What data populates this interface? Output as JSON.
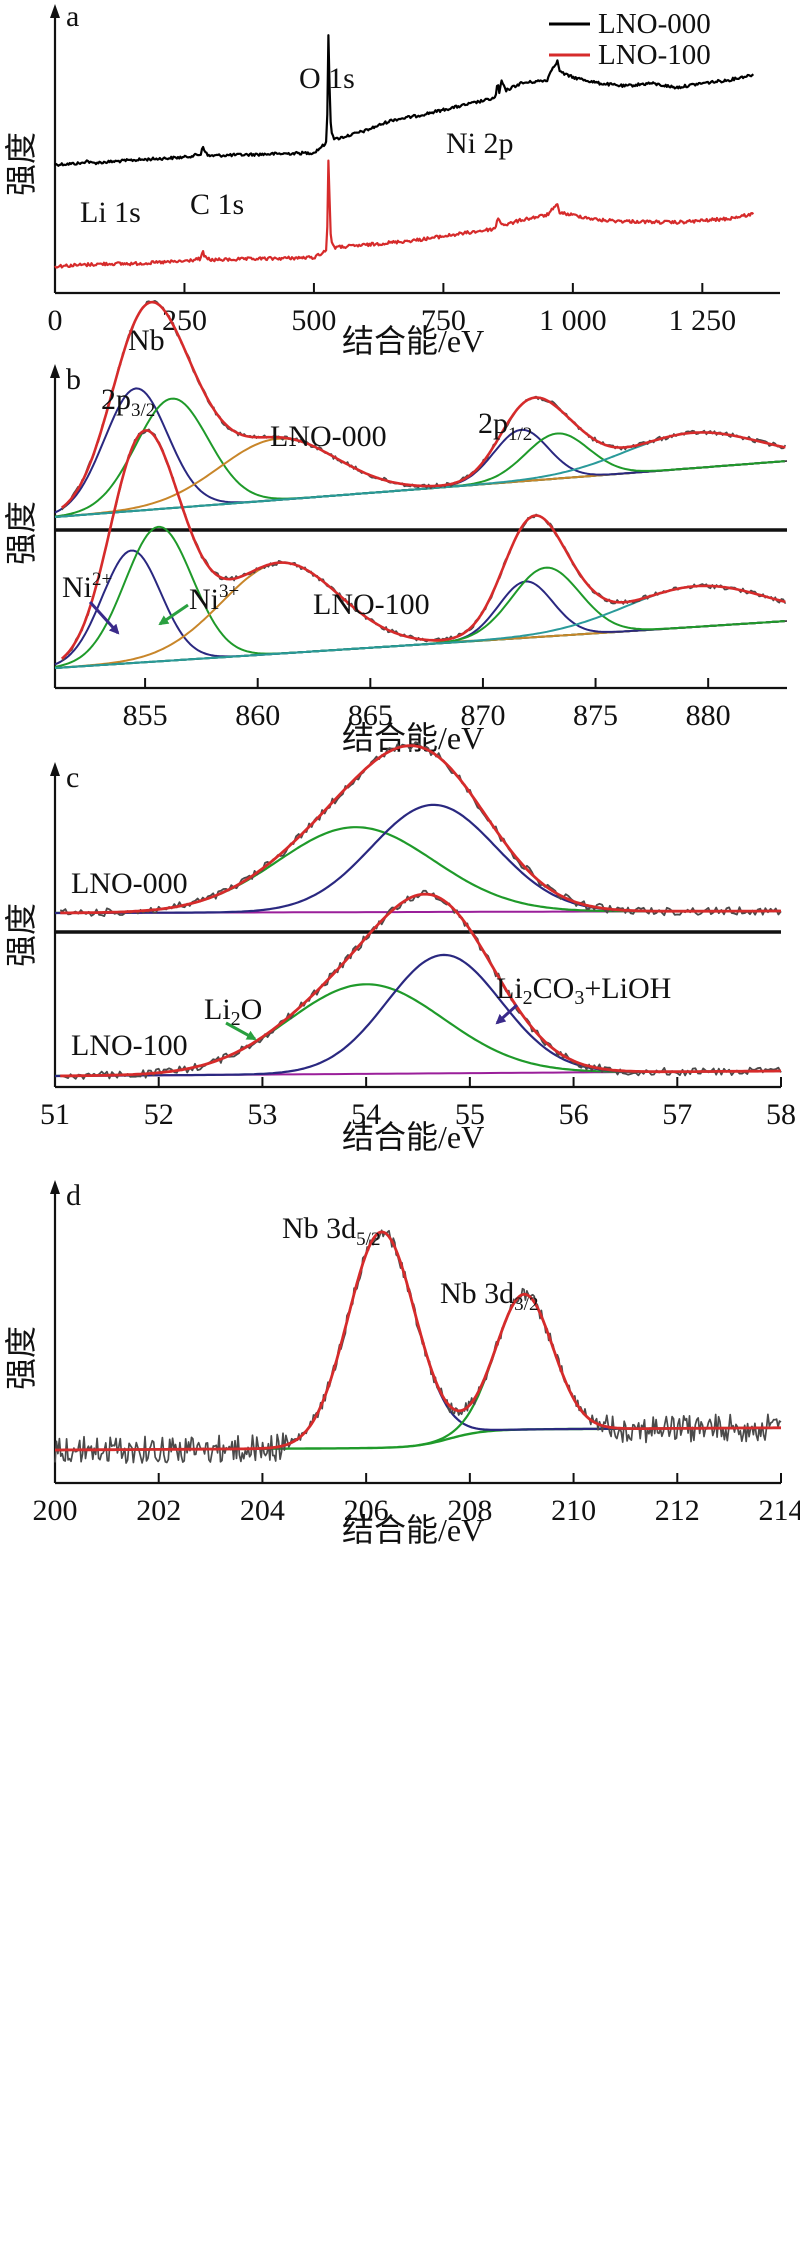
{
  "figure": {
    "width": 800,
    "height": 2253
  },
  "chart_data": [
    {
      "panel": "a",
      "type": "line",
      "xlabel": "结合能/eV",
      "ylabel": "强度",
      "xlim": [
        0,
        1400
      ],
      "xticks": [
        0,
        250,
        500,
        750,
        1000,
        1250
      ],
      "xtick_labels": [
        "0",
        "250",
        "500",
        "750",
        "1 000",
        "1 250"
      ],
      "legend": [
        {
          "name": "LNO-000",
          "color": "#000000"
        },
        {
          "name": "LNO-100",
          "color": "#d62b2b"
        }
      ],
      "annotations": [
        "Li 1s",
        "C 1s",
        "O 1s",
        "Ni 2p",
        "Nb"
      ],
      "series": [
        {
          "name": "LNO-000",
          "color": "#000000",
          "x": [
            0,
            55,
            60,
            65,
            70,
            150,
            250,
            282,
            285,
            290,
            295,
            300,
            500,
            525,
            528,
            530,
            532,
            535,
            540,
            560,
            600,
            650,
            700,
            750,
            800,
            850,
            855,
            858,
            862,
            870,
            900,
            950,
            960,
            970,
            975,
            985,
            1000,
            1050,
            1100,
            1150,
            1200,
            1250,
            1300,
            1350
          ],
          "y": [
            5,
            6,
            8,
            7,
            6,
            8,
            10,
            12,
            18,
            14,
            11,
            11,
            13,
            20,
            92,
            60,
            35,
            26,
            22,
            24,
            28,
            35,
            38,
            42,
            46,
            50,
            60,
            53,
            62,
            55,
            60,
            62,
            70,
            75,
            68,
            66,
            64,
            60,
            58,
            60,
            57,
            60,
            62,
            66
          ]
        },
        {
          "name": "LNO-100",
          "color": "#d62b2b",
          "x": [
            0,
            50,
            100,
            150,
            200,
            250,
            282,
            285,
            290,
            300,
            400,
            500,
            525,
            528,
            530,
            532,
            535,
            540,
            600,
            700,
            800,
            850,
            855,
            860,
            870,
            900,
            950,
            960,
            970,
            975,
            985,
            1000,
            1050,
            1100,
            1200,
            1300,
            1350
          ],
          "y": [
            3,
            4,
            5,
            5,
            6,
            7,
            9,
            15,
            10,
            8,
            9,
            10,
            16,
            88,
            58,
            30,
            22,
            18,
            20,
            24,
            30,
            33,
            42,
            38,
            36,
            40,
            44,
            48,
            52,
            46,
            45,
            44,
            40,
            39,
            38,
            41,
            45
          ]
        }
      ]
    },
    {
      "panel": "b",
      "type": "line",
      "xlabel": "结合能/eV",
      "ylabel": "强度",
      "xlim": [
        851,
        883.5
      ],
      "xticks": [
        855,
        860,
        865,
        870,
        875,
        880
      ],
      "annotations": [
        "2p3/2",
        "2p1/2",
        "LNO-000",
        "LNO-100",
        "Ni2+",
        "Ni3+"
      ],
      "subpanels": [
        {
          "sample": "LNO-000",
          "peaks": [
            {
              "component": "Ni2+ 2p3/2",
              "center": 854.6,
              "height": 0.38,
              "width": 1.4
            },
            {
              "component": "Ni3+ 2p3/2",
              "center": 856.2,
              "height": 0.34,
              "width": 1.6
            },
            {
              "component": "satellite",
              "center": 860.9,
              "height": 0.19,
              "width": 2.6
            },
            {
              "component": "Ni2+ 2p1/2",
              "center": 871.7,
              "height": 0.16,
              "width": 1.2
            },
            {
              "component": "Ni3+ 2p1/2",
              "center": 873.3,
              "height": 0.14,
              "width": 1.4
            },
            {
              "component": "satellite",
              "center": 879.3,
              "height": 0.11,
              "width": 3.0
            }
          ]
        },
        {
          "sample": "LNO-100",
          "peaks": [
            {
              "component": "Ni2+ 2p3/2",
              "center": 854.4,
              "height": 0.36,
              "width": 1.3
            },
            {
              "component": "Ni3+ 2p3/2",
              "center": 855.6,
              "height": 0.43,
              "width": 1.5
            },
            {
              "component": "satellite",
              "center": 861.0,
              "height": 0.29,
              "width": 2.6
            },
            {
              "component": "Ni2+ 2p1/2",
              "center": 871.9,
              "height": 0.18,
              "width": 1.2
            },
            {
              "component": "Ni3+ 2p1/2",
              "center": 872.8,
              "height": 0.22,
              "width": 1.5
            },
            {
              "component": "satellite",
              "center": 879.5,
              "height": 0.13,
              "width": 3.2
            }
          ]
        }
      ]
    },
    {
      "panel": "c",
      "type": "line",
      "xlabel": "结合能/eV",
      "ylabel": "强度",
      "xlim": [
        51,
        58
      ],
      "xticks": [
        51,
        52,
        53,
        54,
        55,
        56,
        57,
        58
      ],
      "annotations": [
        "LNO-000",
        "LNO-100",
        "Li2O",
        "Li2CO3+LiOH"
      ],
      "subpanels": [
        {
          "sample": "LNO-000",
          "peaks": [
            {
              "component": "Li2O",
              "center": 53.9,
              "height": 0.5,
              "width": 0.75
            },
            {
              "component": "Li2CO3+LiOH",
              "center": 54.65,
              "height": 0.63,
              "width": 0.6
            }
          ]
        },
        {
          "sample": "LNO-100",
          "peaks": [
            {
              "component": "Li2O",
              "center": 54.0,
              "height": 0.56,
              "width": 0.75
            },
            {
              "component": "Li2CO3+LiOH",
              "center": 54.75,
              "height": 0.74,
              "width": 0.55
            }
          ]
        }
      ]
    },
    {
      "panel": "d",
      "type": "line",
      "xlabel": "结合能/eV",
      "ylabel": "强度",
      "xlim": [
        200,
        214
      ],
      "xticks": [
        200,
        202,
        204,
        206,
        208,
        210,
        212,
        214
      ],
      "annotations": [
        "Nb 3d5/2",
        "Nb 3d3/2"
      ],
      "peaks": [
        {
          "component": "Nb 3d5/2",
          "center": 206.3,
          "height": 0.83,
          "width": 0.65
        },
        {
          "component": "Nb 3d3/2",
          "center": 209.05,
          "height": 0.52,
          "width": 0.55
        }
      ]
    }
  ],
  "labels": {
    "a": {
      "panel": "a",
      "xlabel": "结合能/eV",
      "ylabel": "强度",
      "li1s": "Li 1s",
      "c1s": "C 1s",
      "o1s": "O 1s",
      "ni2p": "Ni 2p",
      "nb": "Nb",
      "leg1": "LNO-000",
      "leg2": "LNO-100",
      "ticks": [
        "0",
        "250",
        "500",
        "750",
        "1 000",
        "1 250"
      ]
    },
    "b": {
      "panel": "b",
      "xlabel": "结合能/eV",
      "ylabel": "强度",
      "p32_main": "2p",
      "p32_sub": "3/2",
      "p12_main": "2p",
      "p12_sub": "1/2",
      "lno000": "LNO-000",
      "lno100": "LNO-100",
      "ni2_main": "Ni",
      "ni2_sup": "2+",
      "ni3_main": "Ni",
      "ni3_sup": "3+",
      "ticks": [
        "855",
        "860",
        "865",
        "870",
        "875",
        "880"
      ]
    },
    "c": {
      "panel": "c",
      "xlabel": "结合能/eV",
      "ylabel": "强度",
      "lno000": "LNO-000",
      "lno100": "LNO-100",
      "li2o_a": "Li",
      "li2o_b": "2",
      "li2o_c": "O",
      "li2co3_a": "Li",
      "li2co3_b": "2",
      "li2co3_c": "CO",
      "li2co3_d": "3",
      "li2co3_e": "+LiOH",
      "ticks": [
        "51",
        "52",
        "53",
        "54",
        "55",
        "56",
        "57",
        "58"
      ]
    },
    "d": {
      "panel": "d",
      "xlabel": "结合能/eV",
      "ylabel": "强度",
      "nb52_main": "Nb 3d",
      "nb52_sub": "5/2",
      "nb32_main": "Nb 3d",
      "nb32_sub": "3/2",
      "ticks": [
        "200",
        "202",
        "204",
        "206",
        "208",
        "210",
        "212",
        "214"
      ]
    }
  },
  "colors": {
    "black": "#000000",
    "red": "#d62b2b",
    "grey_noise": "#4a4a4a",
    "navy": "#2a2880",
    "green": "#1f9a2a",
    "orange": "#c8862a",
    "teal": "#2a9a9a",
    "magenta": "#9a1f9a",
    "arrow_navy": "#3a2a8a",
    "arrow_green": "#2aa040"
  }
}
